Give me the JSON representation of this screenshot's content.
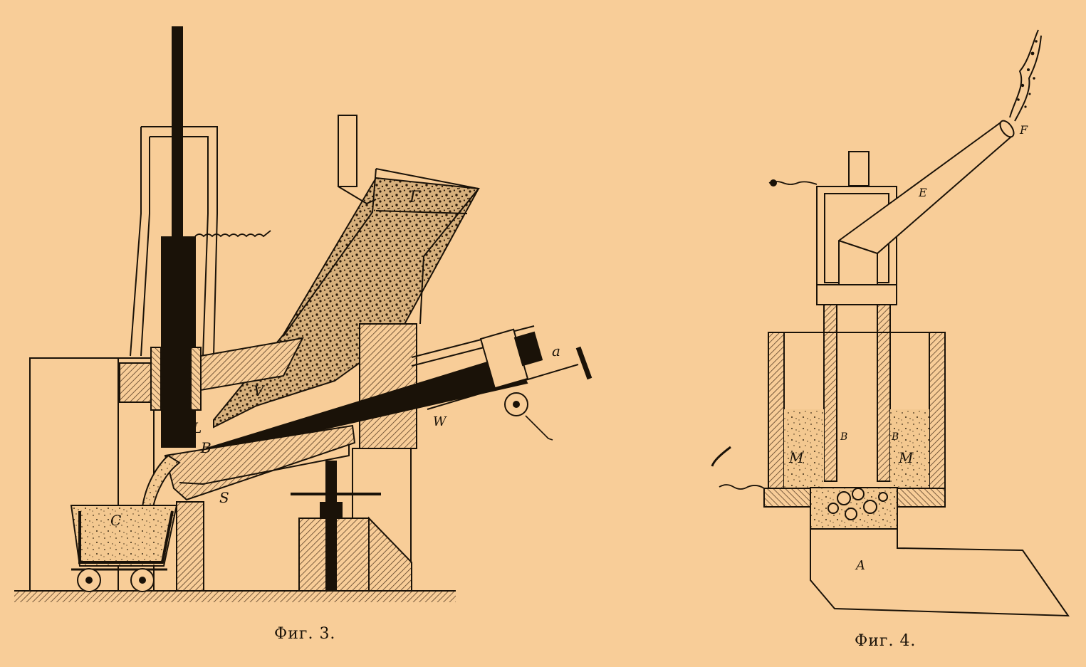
{
  "colors": {
    "background": "#f8cd98",
    "ink": "#1a1208",
    "hatch": "#5a4028"
  },
  "figure3": {
    "caption": "Фиг. 3.",
    "labels": {
      "hopper": "Г",
      "v": "V",
      "l": "L",
      "b": "B",
      "c": "C",
      "s": "S",
      "w": "W",
      "a": "a"
    }
  },
  "figure4": {
    "caption": "Фиг. 4.",
    "labels": {
      "e": "E",
      "f": "F",
      "a": "A",
      "m_left": "M",
      "m_right": "M",
      "b_left": "B",
      "b_right": "B"
    }
  }
}
